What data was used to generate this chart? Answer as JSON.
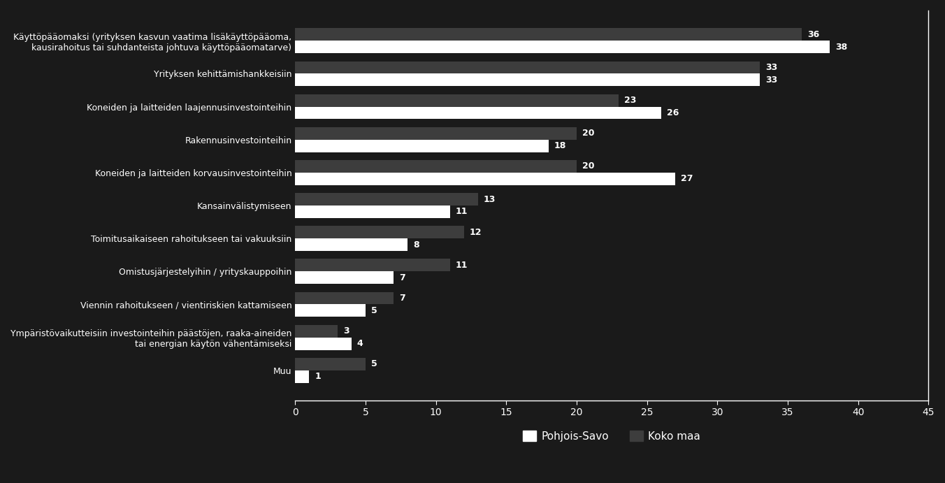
{
  "categories": [
    "Käyttöpääomaksi (yrityksen kasvun vaatima lisäkäyttöpääoma,\nkausirahoitus tai suhdanteista johtuva käyttöpääomatarve)",
    "Yrityksen kehittämishankkeisiin",
    "Koneiden ja laitteiden laajennusinvestointeihin",
    "Rakennusinvestointeihin",
    "Koneiden ja laitteiden korvausinvestointeihin",
    "Kansainvälistymiseen",
    "Toimitusaikaiseen rahoitukseen tai vakuuksiin",
    "Omistusjärjestelyihin / yrityskauppoihin",
    "Viennin rahoitukseen / vientiriskien kattamiseen",
    "Ympäristövaikutteisiin investointeihin päästöjen, raaka-aineiden\ntai energian käytön vähentämiseksi",
    "Muu"
  ],
  "pohjois_savo": [
    38,
    33,
    26,
    18,
    27,
    11,
    8,
    7,
    5,
    4,
    1
  ],
  "koko_maa": [
    36,
    33,
    23,
    20,
    20,
    13,
    12,
    11,
    7,
    3,
    5
  ],
  "color_pohjois_savo": "#ffffff",
  "color_koko_maa": "#3d3d3d",
  "background_color": "#1a1a1a",
  "text_color": "#ffffff",
  "bar_height": 0.38,
  "xlim": [
    0,
    45
  ],
  "xticks": [
    0,
    5,
    10,
    15,
    20,
    25,
    30,
    35,
    40,
    45
  ],
  "legend_pohjois_savo": "Pohjois-Savo",
  "legend_koko_maa": "Koko maa",
  "label_fontsize": 9,
  "tick_fontsize": 10,
  "legend_fontsize": 11,
  "category_fontsize": 9
}
